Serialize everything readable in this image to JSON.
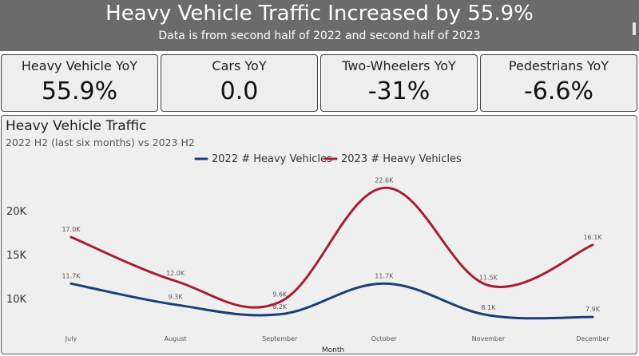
{
  "header": {
    "title": "Heavy Vehicle Traffic Increased by 55.9%",
    "subtitle": "Data is from second half of 2022 and second half of 2023"
  },
  "kpis": [
    {
      "label": "Heavy Vehicle YoY",
      "value": "55.9%"
    },
    {
      "label": "Cars YoY",
      "value": "0.0"
    },
    {
      "label": "Two-Wheelers YoY",
      "value": "-31%"
    },
    {
      "label": "Pedestrians YoY",
      "value": "-6.6%"
    }
  ],
  "chart": {
    "title": "Heavy Vehicle Traffic",
    "subtitle": "2022 H2 (last six months) vs 2023 H2"
  },
  "chart_data": {
    "type": "line",
    "categories": [
      "July",
      "August",
      "September",
      "October",
      "November",
      "December"
    ],
    "xlabel": "Month",
    "ylabel": "",
    "yticks": [
      10000,
      15000,
      20000
    ],
    "ytick_labels": [
      "10K",
      "15K",
      "20K"
    ],
    "legend_position": "top-center",
    "grid": false,
    "smooth": true,
    "series": [
      {
        "name": "2022 # Heavy Vehicles",
        "color": "#1a3f7a",
        "values": [
          11700,
          9300,
          8200,
          11700,
          8100,
          7900
        ],
        "labels": [
          "11.7K",
          "9.3K",
          "8.2K",
          "11.7K",
          "8.1K",
          "7.9K"
        ]
      },
      {
        "name": "2023 # Heavy Vehicles",
        "color": "#a61e34",
        "values": [
          17000,
          12000,
          9600,
          22600,
          11500,
          16100
        ],
        "labels": [
          "17.0K",
          "12.0K",
          "9.6K",
          "22.6K",
          "11.5K",
          "16.1K"
        ]
      }
    ]
  }
}
